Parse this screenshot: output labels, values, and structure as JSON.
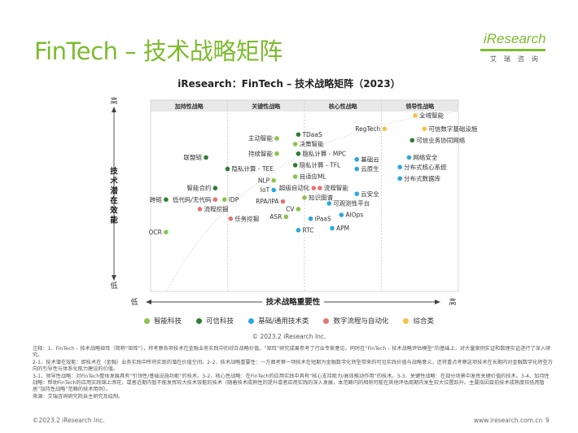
{
  "page": {
    "title": "FinTech – 技术战略矩阵",
    "logo_text": "iResearch",
    "logo_subtitle": "艾瑞咨询",
    "copyright": "© 2023.2 iResearch Inc.",
    "notes": [
      "注释：1、FinTech – 技术战略矩阵（简称“矩阵”），将考察各项技术在金融业务实践中的综合战略价值。“矩阵”研究成果参考了行业专家意见，同时在“FinTech – 技术战略评估模型”的基础上，对大量案例实证和数理实证进行了深入研究。",
      "2-1、技术潜在效能：即技术在（金融）业务实践中所将实现的潜在价值空间。2-2、技术战略重要性：一方面考察一项技术在短期为金融数字化转型带来的可见实践价值与战略意义，还将重点考察这项技术在长期内对金融数字化转型方向的引导性与体系化能力建设的价值。",
      "3-1、领导性战略：对FinTech整体发展具有“引领性/基础设施功能”的技术。3-2、核心性战略：在FinTech的应用实践中具有“核心支持能力/高效推动作用”的技术。3-3、关键性战略：在部分场景中发挥关键价值的技术。3-4、加持性战略：帮助FinTech的应用实践锦上添花，或者近期内暂不能发挥较大技术效能的技术（随着技术成熟性的提升或者应用实践的深入发展，本范畴内的相例可能在其他评估周期内发生较大位置跃升。主要指因目前技术成熟度较低而暂居“加持性战略”范畴的技术用例）。",
      "来源：艾瑞咨询研究院自主研究及绘制。"
    ],
    "footer_left": "©2023.2 iResearch Inc.",
    "footer_right": "www.iresearch.com.cn",
    "page_number": "9"
  },
  "chart_data": {
    "type": "scatter",
    "title": "iResearch：FinTech – 技术战略矩阵（2023）",
    "xlabel": "技术战略重要性",
    "ylabel": "技术潜在效能",
    "x_low": "低",
    "x_high": "高",
    "y_high": "高",
    "y_low": "低",
    "xlim": [
      0,
      100
    ],
    "ylim": [
      0,
      100
    ],
    "zones": [
      "加持性战略",
      "关键性战略",
      "核心性战略",
      "领导性战略"
    ],
    "colors": {
      "智能科技": "#8bc34a",
      "可信科技": "#2e7d32",
      "基础/通用技术类": "#29a8e0",
      "数字流程与自动化": "#e57373",
      "综合类": "#f5c242"
    },
    "legend": [
      "智能科技",
      "可信科技",
      "基础/通用技术类",
      "数字流程与自动化",
      "综合类"
    ],
    "points": [
      {
        "label": "全域智能",
        "category": "综合类",
        "x": 86,
        "y": 92,
        "side": "right"
      },
      {
        "label": "可信数字基础设施",
        "category": "综合类",
        "x": 89,
        "y": 85,
        "side": "right"
      },
      {
        "label": "可信业务协同网络",
        "category": "可信科技",
        "x": 85,
        "y": 79,
        "side": "right"
      },
      {
        "label": "RegTech",
        "category": "综合类",
        "x": 76,
        "y": 85,
        "side": "left"
      },
      {
        "label": "网络安全",
        "category": "基础/通用技术类",
        "x": 84,
        "y": 70,
        "side": "right"
      },
      {
        "label": "分布式核心系统",
        "category": "基础/通用技术类",
        "x": 81,
        "y": 65,
        "side": "right"
      },
      {
        "label": "分布式数据库",
        "category": "基础/通用技术类",
        "x": 81,
        "y": 59,
        "side": "right"
      },
      {
        "label": "基础云",
        "category": "基础/通用技术类",
        "x": 67,
        "y": 69,
        "side": "right"
      },
      {
        "label": "云原生",
        "category": "基础/通用技术类",
        "x": 67,
        "y": 64,
        "side": "right"
      },
      {
        "label": "TDaaS",
        "category": "可信科技",
        "x": 48,
        "y": 82,
        "side": "right"
      },
      {
        "label": "主动智能",
        "category": "智能科技",
        "x": 41,
        "y": 80,
        "side": "left"
      },
      {
        "label": "决策智能",
        "category": "智能科技",
        "x": 47,
        "y": 77,
        "side": "right"
      },
      {
        "label": "持续智能",
        "category": "智能科技",
        "x": 41,
        "y": 72,
        "side": "left"
      },
      {
        "label": "隐私计算 - MPC",
        "category": "可信科技",
        "x": 48,
        "y": 72,
        "side": "right"
      },
      {
        "label": "隐私计算 - TFL",
        "category": "可信科技",
        "x": 47,
        "y": 66,
        "side": "right"
      },
      {
        "label": "自适应ML",
        "category": "智能科技",
        "x": 47,
        "y": 60,
        "side": "right"
      },
      {
        "label": "联盟链",
        "category": "可信科技",
        "x": 18,
        "y": 70,
        "side": "left"
      },
      {
        "label": "隐私计算 - TEE",
        "category": "可信科技",
        "x": 25,
        "y": 64,
        "side": "right"
      },
      {
        "label": "NLP",
        "category": "智能科技",
        "x": 40,
        "y": 58,
        "side": "left"
      },
      {
        "label": "IoT",
        "category": "基础/通用技术类",
        "x": 40,
        "y": 53,
        "side": "left"
      },
      {
        "label": "智能合约",
        "category": "可信科技",
        "x": 21,
        "y": 54,
        "side": "left"
      },
      {
        "label": "超级自动化",
        "category": "数字流程与自动化",
        "x": 53,
        "y": 54,
        "side": "left"
      },
      {
        "label": "流程智能",
        "category": "数字流程与自动化",
        "x": 55,
        "y": 54,
        "side": "right"
      },
      {
        "label": "知识图谱",
        "category": "智能科技",
        "x": 50,
        "y": 49,
        "side": "right"
      },
      {
        "label": "云安全",
        "category": "基础/通用技术类",
        "x": 67,
        "y": 51,
        "side": "right"
      },
      {
        "label": "跨链",
        "category": "可信科技",
        "x": 5,
        "y": 48,
        "side": "left"
      },
      {
        "label": "低代码/无代码",
        "category": "数字流程与自动化",
        "x": 21,
        "y": 48,
        "side": "left"
      },
      {
        "label": "IDP",
        "category": "智能科技",
        "x": 24,
        "y": 48,
        "side": "right"
      },
      {
        "label": "RPA/IPA",
        "category": "数字流程与自动化",
        "x": 43,
        "y": 47,
        "side": "left"
      },
      {
        "label": "可观测性平台",
        "category": "基础/通用技术类",
        "x": 58,
        "y": 46,
        "side": "right"
      },
      {
        "label": "流程挖掘",
        "category": "数字流程与自动化",
        "x": 16,
        "y": 43,
        "side": "right"
      },
      {
        "label": "CV",
        "category": "智能科技",
        "x": 48,
        "y": 43,
        "side": "left"
      },
      {
        "label": "AIOps",
        "category": "基础/通用技术类",
        "x": 62,
        "y": 40,
        "side": "right"
      },
      {
        "label": "ASR",
        "category": "智能科技",
        "x": 44,
        "y": 39,
        "side": "left"
      },
      {
        "label": "iPaaS",
        "category": "基础/通用技术类",
        "x": 52,
        "y": 38,
        "side": "right"
      },
      {
        "label": "任务挖掘",
        "category": "数字流程与自动化",
        "x": 26,
        "y": 38,
        "side": "right"
      },
      {
        "label": "APM",
        "category": "基础/通用技术类",
        "x": 59,
        "y": 33,
        "side": "right"
      },
      {
        "label": "RTC",
        "category": "基础/通用技术类",
        "x": 48,
        "y": 32,
        "side": "right"
      },
      {
        "label": "OCR",
        "category": "智能科技",
        "x": 5,
        "y": 31,
        "side": "left"
      }
    ]
  }
}
